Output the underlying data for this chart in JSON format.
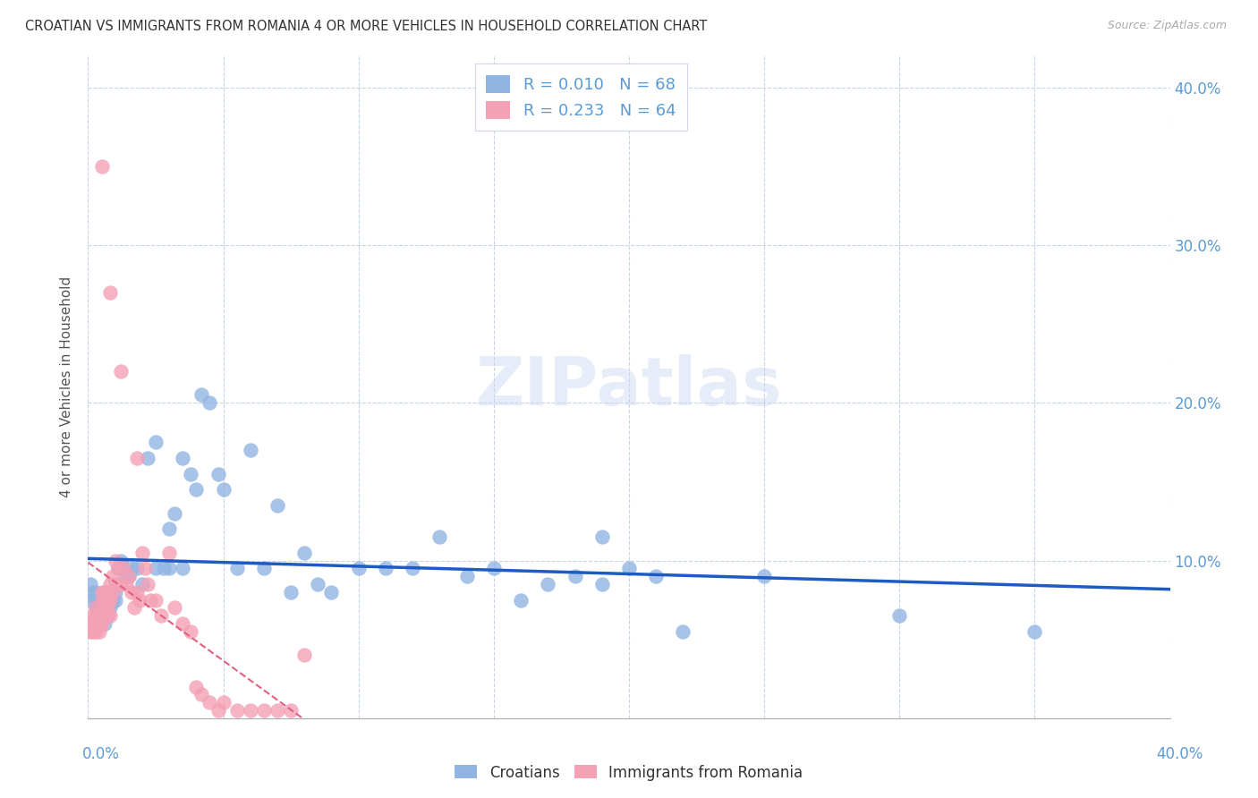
{
  "title": "CROATIAN VS IMMIGRANTS FROM ROMANIA 4 OR MORE VEHICLES IN HOUSEHOLD CORRELATION CHART",
  "source": "Source: ZipAtlas.com",
  "ylabel": "4 or more Vehicles in Household",
  "xlim": [
    0.0,
    0.4
  ],
  "ylim": [
    0.0,
    0.42
  ],
  "croatians_R": 0.01,
  "croatians_N": 68,
  "romania_R": 0.233,
  "romania_N": 64,
  "croatians_color": "#92B4E3",
  "romania_color": "#F4A0B5",
  "trendline_croatians_color": "#1F5BC4",
  "trendline_romania_color": "#E06080",
  "background_color": "#ffffff",
  "watermark": "ZIPatlas",
  "legend_croatians": "Croatians",
  "legend_romania": "Immigrants from Romania",
  "grid_color": "#C8D5E8",
  "ytick_color": "#5B9BD5",
  "xtick_color": "#5B9BD5",
  "croatians_x": [
    0.001,
    0.002,
    0.002,
    0.003,
    0.003,
    0.003,
    0.004,
    0.004,
    0.005,
    0.005,
    0.006,
    0.006,
    0.007,
    0.007,
    0.008,
    0.008,
    0.009,
    0.009,
    0.01,
    0.01,
    0.011,
    0.012,
    0.013,
    0.014,
    0.015,
    0.016,
    0.018,
    0.02,
    0.022,
    0.025,
    0.028,
    0.03,
    0.032,
    0.035,
    0.038,
    0.04,
    0.042,
    0.045,
    0.048,
    0.05,
    0.055,
    0.06,
    0.065,
    0.07,
    0.075,
    0.08,
    0.085,
    0.09,
    0.1,
    0.11,
    0.12,
    0.13,
    0.14,
    0.15,
    0.16,
    0.17,
    0.18,
    0.19,
    0.2,
    0.21,
    0.22,
    0.25,
    0.3,
    0.35,
    0.025,
    0.03,
    0.035,
    0.19
  ],
  "croatians_y": [
    0.085,
    0.08,
    0.075,
    0.07,
    0.075,
    0.08,
    0.065,
    0.07,
    0.065,
    0.07,
    0.06,
    0.065,
    0.065,
    0.07,
    0.07,
    0.075,
    0.075,
    0.08,
    0.075,
    0.08,
    0.095,
    0.1,
    0.095,
    0.09,
    0.09,
    0.095,
    0.095,
    0.085,
    0.165,
    0.175,
    0.095,
    0.12,
    0.13,
    0.165,
    0.155,
    0.145,
    0.205,
    0.2,
    0.155,
    0.145,
    0.095,
    0.17,
    0.095,
    0.135,
    0.08,
    0.105,
    0.085,
    0.08,
    0.095,
    0.095,
    0.095,
    0.115,
    0.09,
    0.095,
    0.075,
    0.085,
    0.09,
    0.085,
    0.095,
    0.09,
    0.055,
    0.09,
    0.065,
    0.055,
    0.095,
    0.095,
    0.095,
    0.115
  ],
  "romania_x": [
    0.001,
    0.001,
    0.002,
    0.002,
    0.002,
    0.003,
    0.003,
    0.003,
    0.003,
    0.004,
    0.004,
    0.004,
    0.005,
    0.005,
    0.005,
    0.005,
    0.006,
    0.006,
    0.006,
    0.007,
    0.007,
    0.007,
    0.007,
    0.008,
    0.008,
    0.008,
    0.009,
    0.009,
    0.01,
    0.01,
    0.011,
    0.012,
    0.013,
    0.014,
    0.015,
    0.016,
    0.017,
    0.018,
    0.019,
    0.02,
    0.021,
    0.022,
    0.023,
    0.025,
    0.027,
    0.03,
    0.032,
    0.035,
    0.038,
    0.04,
    0.042,
    0.045,
    0.048,
    0.05,
    0.055,
    0.06,
    0.065,
    0.07,
    0.075,
    0.08,
    0.005,
    0.008,
    0.012,
    0.018
  ],
  "romania_y": [
    0.06,
    0.055,
    0.065,
    0.06,
    0.055,
    0.07,
    0.065,
    0.06,
    0.055,
    0.065,
    0.06,
    0.055,
    0.08,
    0.075,
    0.07,
    0.06,
    0.08,
    0.075,
    0.065,
    0.08,
    0.075,
    0.07,
    0.065,
    0.085,
    0.075,
    0.065,
    0.09,
    0.08,
    0.1,
    0.085,
    0.095,
    0.085,
    0.095,
    0.085,
    0.09,
    0.08,
    0.07,
    0.08,
    0.075,
    0.105,
    0.095,
    0.085,
    0.075,
    0.075,
    0.065,
    0.105,
    0.07,
    0.06,
    0.055,
    0.02,
    0.015,
    0.01,
    0.005,
    0.01,
    0.005,
    0.005,
    0.005,
    0.005,
    0.005,
    0.04,
    0.35,
    0.27,
    0.22,
    0.165
  ]
}
